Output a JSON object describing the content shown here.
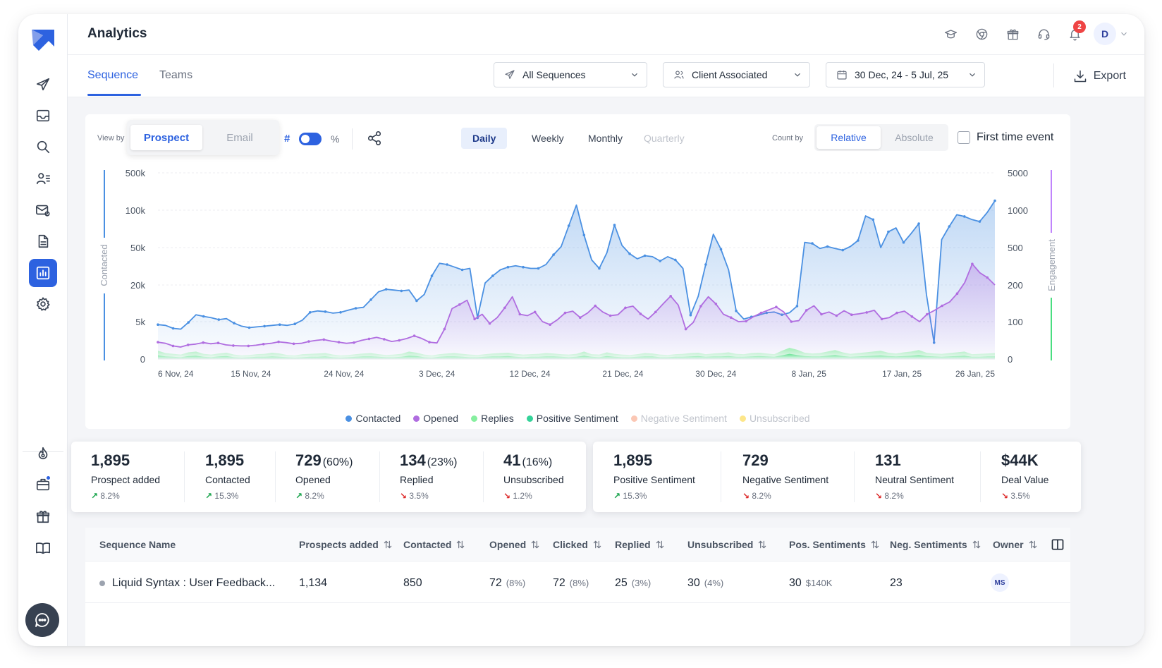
{
  "header": {
    "title": "Analytics",
    "notification_count": "2",
    "avatar_initial": "D"
  },
  "tabs": [
    {
      "label": "Sequence",
      "active": true
    },
    {
      "label": "Teams",
      "active": false
    }
  ],
  "filters": {
    "sequence": "All Sequences",
    "client": "Client Associated",
    "date_range": "30 Dec, 24 - 5 Jul, 25",
    "export_label": "Export"
  },
  "chart_controls": {
    "view_by_label": "View by",
    "view_by_options": [
      {
        "label": "Prospect",
        "active": true
      },
      {
        "label": "Email",
        "active": false
      }
    ],
    "hash_label": "#",
    "percent_label": "%",
    "periods": [
      {
        "label": "Daily",
        "state": "active"
      },
      {
        "label": "Weekly",
        "state": "normal"
      },
      {
        "label": "Monthly",
        "state": "normal"
      },
      {
        "label": "Quarterly",
        "state": "disabled"
      }
    ],
    "count_by_label": "Count by",
    "count_by_options": [
      {
        "label": "Relative",
        "active": true
      },
      {
        "label": "Absolute",
        "active": false
      }
    ],
    "first_time_event_label": "First time event",
    "first_time_event_checked": false
  },
  "chart_data": {
    "type": "line",
    "title": "",
    "ylabel": "Contacted",
    "y2label": "Engagement",
    "y_scale": "log",
    "left_ticks": [
      "500k",
      "100k",
      "50k",
      "20k",
      "5k",
      "0"
    ],
    "right_ticks": [
      "5000",
      "1000",
      "500",
      "200",
      "100",
      "0"
    ],
    "x_tick_labels": [
      "6 Nov, 24",
      "15 Nov, 24",
      "24 Nov, 24",
      "3 Dec, 24",
      "12 Dec, 24",
      "21 Dec, 24",
      "30 Dec, 24",
      "8 Jan, 25",
      "17 Jan, 25",
      "26 Jan, 25"
    ],
    "x_range": [
      "6 Nov, 24",
      "28 Jan, 25"
    ],
    "series": [
      {
        "name": "Contacted",
        "color": "#4a90e2",
        "axis": "left",
        "style": "line-area",
        "values": [
          4600,
          4500,
          4100,
          4000,
          4900,
          6500,
          6100,
          5800,
          5400,
          5600,
          4800,
          4400,
          4200,
          4300,
          4400,
          4500,
          4600,
          4500,
          4700,
          5300,
          7100,
          7500,
          7300,
          6900,
          7100,
          7700,
          8300,
          8600,
          11500,
          15500,
          17000,
          16500,
          16000,
          16500,
          11000,
          14000,
          25000,
          34000,
          33000,
          31000,
          29000,
          30000,
          5800,
          21000,
          25000,
          29000,
          31000,
          32000,
          31000,
          30000,
          30000,
          33000,
          42000,
          51000,
          75000,
          125000,
          63000,
          37000,
          30000,
          44000,
          76000,
          52000,
          43000,
          38000,
          41000,
          40000,
          36000,
          40000,
          37000,
          30000,
          6400,
          13000,
          33000,
          64000,
          48000,
          29000,
          7500,
          5500,
          6000,
          6400,
          7000,
          7200,
          6500,
          7000,
          9000,
          55000,
          54000,
          49000,
          51000,
          49000,
          47000,
          51000,
          57000,
          90000,
          84000,
          50000,
          67000,
          72000,
          55000,
          65000,
          78000,
          14000,
          2200,
          58000,
          74000,
          92000,
          89000,
          84000,
          81000,
          96000,
          150000
        ]
      },
      {
        "name": "Opened",
        "color": "#b06de0",
        "axis": "right",
        "style": "line-area",
        "values": [
          45,
          42,
          35,
          32,
          38,
          40,
          44,
          41,
          43,
          38,
          36,
          35,
          35,
          37,
          40,
          42,
          46,
          44,
          41,
          42,
          47,
          50,
          52,
          48,
          45,
          42,
          44,
          50,
          54,
          58,
          53,
          47,
          50,
          55,
          62,
          55,
          45,
          43,
          80,
          128,
          138,
          150,
          105,
          115,
          95,
          108,
          130,
          160,
          115,
          112,
          120,
          100,
          92,
          104,
          118,
          122,
          108,
          118,
          135,
          120,
          112,
          114,
          130,
          134,
          116,
          105,
          120,
          140,
          162,
          137,
          80,
          98,
          134,
          160,
          140,
          115,
          108,
          100,
          101,
          110,
          118,
          125,
          132,
          120,
          100,
          102,
          124,
          135,
          115,
          120,
          112,
          123,
          114,
          116,
          119,
          124,
          105,
          108,
          118,
          122,
          110,
          100,
          115,
          124,
          135,
          145,
          170,
          212,
          335,
          270,
          240,
          200
        ]
      },
      {
        "name": "Replies",
        "color": "#86ef9f",
        "axis": "right",
        "style": "area",
        "values": [
          22,
          16,
          14,
          12,
          18,
          20,
          14,
          12,
          15,
          17,
          12,
          10,
          11,
          13,
          14,
          17,
          15,
          11,
          10,
          13,
          14,
          15,
          16,
          12,
          10,
          11,
          13,
          15,
          16,
          13,
          11,
          12,
          14,
          20,
          17,
          12,
          10,
          13,
          15,
          16,
          14,
          12,
          11,
          13,
          15,
          16,
          17,
          14,
          12,
          13,
          14,
          16,
          15,
          13,
          12,
          14,
          20,
          13,
          12,
          18,
          14,
          12,
          11,
          13,
          16,
          15,
          12,
          11,
          13,
          14,
          16,
          17,
          13,
          15,
          16,
          18,
          14,
          13,
          16,
          17,
          15,
          13,
          22,
          30,
          25,
          17,
          15,
          16,
          20,
          24,
          18,
          14,
          16,
          18,
          20,
          22,
          17,
          15,
          18,
          20,
          24,
          17,
          15,
          14,
          16,
          18,
          20,
          13,
          14,
          15,
          16
        ]
      },
      {
        "name": "Positive Sentiment",
        "color": "#4ade80",
        "axis": "right",
        "style": "area",
        "values": [
          10,
          7,
          6,
          5,
          8,
          9,
          6,
          5,
          7,
          8,
          5,
          4,
          5,
          6,
          6,
          7,
          6,
          5,
          4,
          5,
          6,
          6,
          7,
          5,
          4,
          5,
          6,
          7,
          7,
          6,
          5,
          5,
          6,
          9,
          8,
          5,
          4,
          6,
          7,
          7,
          6,
          5,
          5,
          6,
          7,
          7,
          8,
          6,
          5,
          6,
          6,
          7,
          7,
          6,
          5,
          6,
          9,
          6,
          5,
          8,
          6,
          5,
          5,
          6,
          7,
          7,
          5,
          5,
          6,
          6,
          7,
          8,
          6,
          7,
          7,
          8,
          6,
          6,
          7,
          8,
          7,
          6,
          10,
          14,
          11,
          8,
          7,
          7,
          9,
          11,
          8,
          6,
          7,
          8,
          9,
          10,
          8,
          7,
          8,
          9,
          11,
          8,
          7,
          6,
          7,
          8,
          9,
          6,
          6,
          7,
          7
        ]
      }
    ],
    "legend": [
      {
        "name": "Contacted",
        "color": "#4a90e2",
        "enabled": true
      },
      {
        "name": "Opened",
        "color": "#b06de0",
        "enabled": true
      },
      {
        "name": "Replies",
        "color": "#86ef9f",
        "enabled": true
      },
      {
        "name": "Positive Sentiment",
        "color": "#34d399",
        "enabled": true
      },
      {
        "name": "Negative Sentiment",
        "color": "#fbc7b4",
        "enabled": false
      },
      {
        "name": "Unsubscribed",
        "color": "#fde68a",
        "enabled": false
      }
    ],
    "grid": "horizontal-dashed",
    "legend_position": "bottom"
  },
  "stats_left": [
    {
      "value": "1,895",
      "sub": "",
      "label": "Prospect added",
      "change": "8.2%",
      "dir": "up"
    },
    {
      "value": "1,895",
      "sub": "",
      "label": "Contacted",
      "change": "15.3%",
      "dir": "up"
    },
    {
      "value": "729",
      "sub": "(60%)",
      "label": "Opened",
      "change": "8.2%",
      "dir": "up"
    },
    {
      "value": "134",
      "sub": "(23%)",
      "label": "Replied",
      "change": "3.5%",
      "dir": "down"
    },
    {
      "value": "41",
      "sub": "(16%)",
      "label": "Unsubscribed",
      "change": "1.2%",
      "dir": "down"
    }
  ],
  "stats_right": [
    {
      "value": "1,895",
      "label": "Positive Sentiment",
      "change": "15.3%",
      "dir": "up"
    },
    {
      "value": "729",
      "label": "Negative Sentiment",
      "change": "8.2%",
      "dir": "down"
    },
    {
      "value": "131",
      "label": "Neutral Sentiment",
      "change": "8.2%",
      "dir": "down"
    },
    {
      "value": "$44K",
      "label": "Deal Value",
      "change": "3.5%",
      "dir": "down"
    }
  ],
  "table": {
    "columns": [
      "Sequence Name",
      "Prospects added",
      "Contacted",
      "Opened",
      "Clicked",
      "Replied",
      "Unsubscribed",
      "Pos. Sentiments",
      "Neg. Sentiments",
      "Owner"
    ],
    "rows": [
      {
        "name": "Liquid Syntax : User Feedback...",
        "prospects": "1,134",
        "contacted": "850",
        "opened": "72",
        "opened_pct": "(8%)",
        "clicked": "72",
        "clicked_pct": "(8%)",
        "replied": "25",
        "replied_pct": "(3%)",
        "unsubscribed": "30",
        "unsub_pct": "(4%)",
        "pos": "30",
        "pos_value": "$140K",
        "neg": "23",
        "owner": "MS"
      }
    ]
  }
}
